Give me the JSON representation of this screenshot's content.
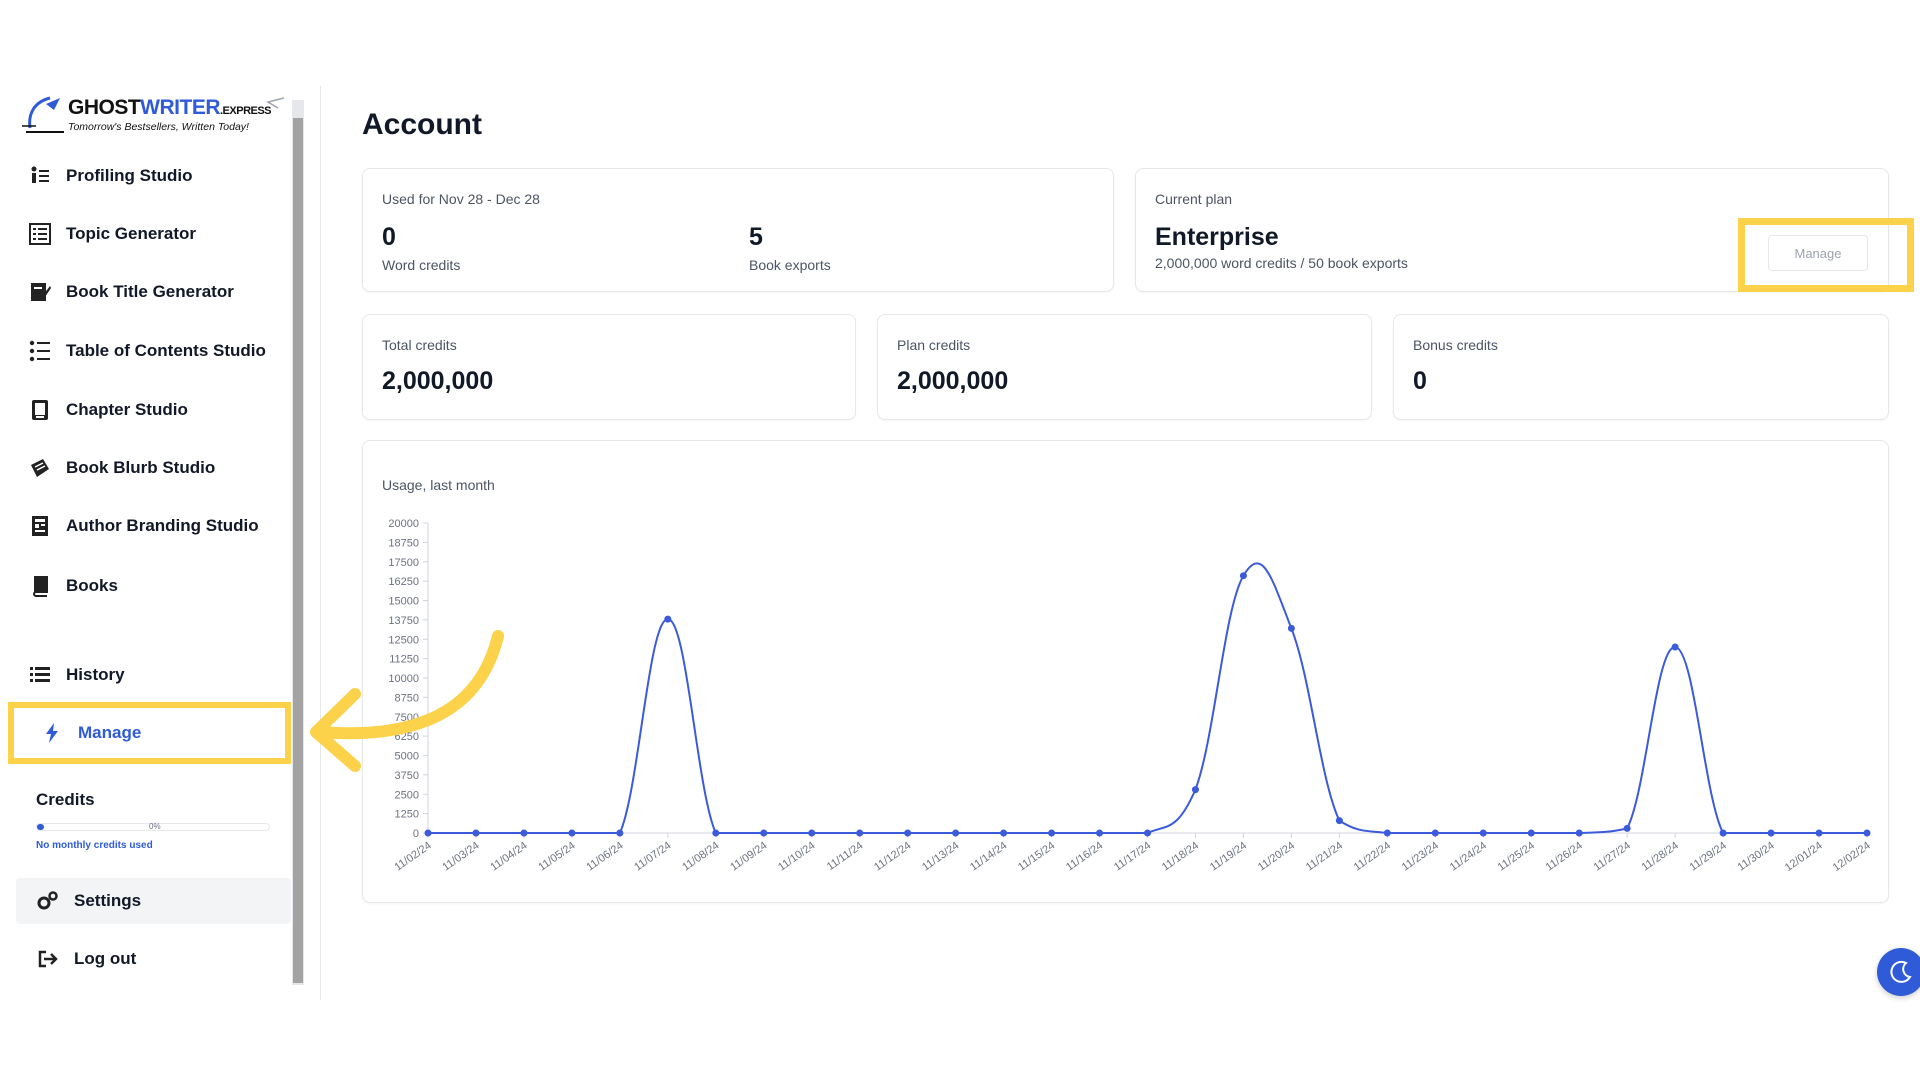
{
  "brand": {
    "name_part1": "GHOST",
    "name_part2": "WRITER",
    "name_suffix": ".EXPRESS",
    "tagline": "Tomorrow's Bestsellers, Written Today!"
  },
  "sidebar": {
    "items": [
      {
        "label": "Profiling Studio",
        "icon": "profiling-icon"
      },
      {
        "label": "Topic Generator",
        "icon": "topic-icon"
      },
      {
        "label": "Book Title Generator",
        "icon": "title-icon"
      },
      {
        "label": "Table of Contents Studio",
        "icon": "toc-icon"
      },
      {
        "label": "Chapter Studio",
        "icon": "chapter-icon"
      },
      {
        "label": "Book Blurb Studio",
        "icon": "blurb-icon"
      },
      {
        "label": "Author Branding Studio",
        "icon": "branding-icon"
      },
      {
        "label": "Books",
        "icon": "book-icon"
      },
      {
        "label": "History",
        "icon": "list-icon"
      }
    ],
    "manage": {
      "label": "Manage",
      "icon": "lightning-icon"
    },
    "credits": {
      "title": "Credits",
      "percent_label": "0%",
      "fill_fraction": 0.03,
      "note": "No monthly credits used"
    },
    "settings": {
      "label": "Settings",
      "icon": "gears-icon"
    },
    "logout": {
      "label": "Log out",
      "icon": "logout-icon"
    }
  },
  "main": {
    "title": "Account",
    "usage_card": {
      "label": "Used for Nov 28 - Dec 28",
      "word_credits_value": "0",
      "word_credits_label": "Word credits",
      "book_exports_value": "5",
      "book_exports_label": "Book exports"
    },
    "plan_card": {
      "label": "Current plan",
      "plan_name": "Enterprise",
      "plan_desc": "2,000,000 word credits / 50 book exports",
      "manage_button": "Manage"
    },
    "total_credits": {
      "label": "Total credits",
      "value": "2,000,000"
    },
    "plan_credits": {
      "label": "Plan credits",
      "value": "2,000,000"
    },
    "bonus_credits": {
      "label": "Bonus credits",
      "value": "0"
    }
  },
  "chart_data": {
    "type": "line",
    "title": "Usage, last month",
    "ylim": [
      0,
      20000
    ],
    "yticks": [
      0,
      1250,
      2500,
      3750,
      5000,
      6250,
      7500,
      8750,
      10000,
      11250,
      12500,
      13750,
      15000,
      16250,
      17500,
      18750,
      20000
    ],
    "x": [
      "11/02/24",
      "11/03/24",
      "11/04/24",
      "11/05/24",
      "11/06/24",
      "11/07/24",
      "11/08/24",
      "11/09/24",
      "11/10/24",
      "11/11/24",
      "11/12/24",
      "11/13/24",
      "11/14/24",
      "11/15/24",
      "11/16/24",
      "11/17/24",
      "11/18/24",
      "11/19/24",
      "11/20/24",
      "11/21/24",
      "11/22/24",
      "11/23/24",
      "11/24/24",
      "11/25/24",
      "11/26/24",
      "11/27/24",
      "11/28/24",
      "11/29/24",
      "11/30/24",
      "12/01/24",
      "12/02/24"
    ],
    "values": [
      0,
      0,
      0,
      0,
      0,
      13800,
      0,
      0,
      0,
      0,
      0,
      0,
      0,
      0,
      0,
      0,
      2800,
      16600,
      13200,
      800,
      0,
      0,
      0,
      0,
      0,
      300,
      12000,
      0,
      0,
      0,
      0
    ],
    "color": "#3b5bdb"
  },
  "colors": {
    "accent": "#2f5bd8",
    "highlight": "#fbd24a"
  }
}
